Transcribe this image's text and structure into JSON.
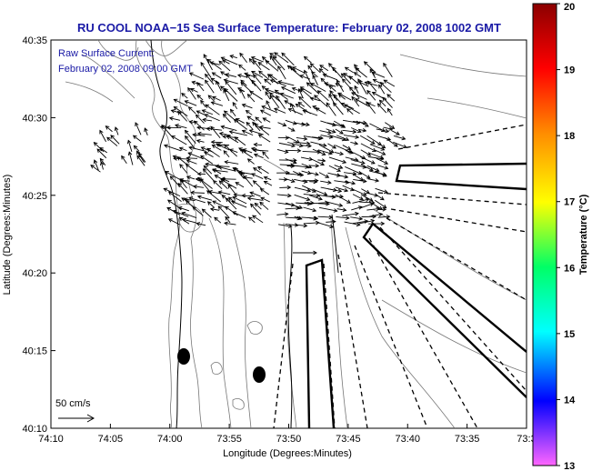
{
  "title": "RU COOL  NOAA−15  Sea Surface Temperature:  February 02, 2008 1002 GMT",
  "annotation": {
    "line1": "Raw Surface Current:",
    "line2": "February 02, 2008 09:00 GMT"
  },
  "x_axis": {
    "label": "Longitude (Degrees:Minutes)",
    "ticks": [
      "74:10",
      "74:05",
      "74:00",
      "73:55",
      "73:50",
      "73:45",
      "73:40",
      "73:35",
      "73:3"
    ]
  },
  "y_axis": {
    "label": "Latitude (Degrees:Minutes)",
    "ticks": [
      "40:35",
      "40:30",
      "40:25",
      "40:20",
      "40:15",
      "40:10"
    ]
  },
  "scale_label": "50 cm/s",
  "colorbar": {
    "label": "Temperature (°C)",
    "ticks": [
      "20",
      "19",
      "18",
      "17",
      "16",
      "15",
      "14",
      "13"
    ],
    "colors": [
      "#8b0000",
      "#ff0000",
      "#ff8c00",
      "#ffff00",
      "#00ff66",
      "#00ffff",
      "#0000ff",
      "#ff66ff"
    ]
  }
}
